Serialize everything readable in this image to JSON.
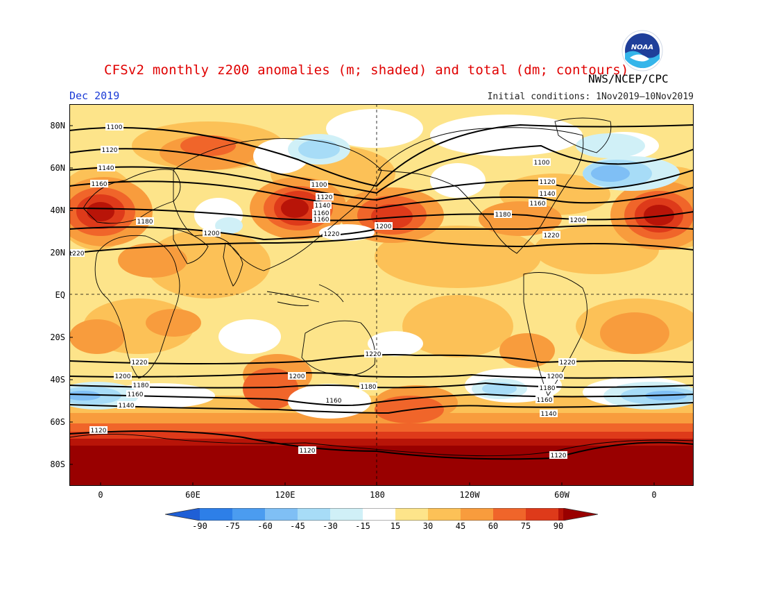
{
  "header": {
    "title": "CFSv2 monthly z200 anomalies (m; shaded) and total (dm; contours)",
    "agency": "NWS/NCEP/CPC",
    "period": "Dec 2019",
    "initial_conditions": "Initial conditions: 1Nov2019–10Nov2019",
    "logo_text": "NOAA"
  },
  "axes": {
    "lat_labels": [
      "80N",
      "60N",
      "40N",
      "20N",
      "EQ",
      "20S",
      "40S",
      "60S",
      "80S"
    ],
    "lon_labels": [
      "0",
      "60E",
      "120E",
      "180",
      "120W",
      "60W",
      "0"
    ]
  },
  "colorbar": {
    "ticks": [
      "-90",
      "-75",
      "-60",
      "-45",
      "-30",
      "-15",
      "15",
      "30",
      "45",
      "60",
      "75",
      "90"
    ],
    "colors": [
      "#1f5fd6",
      "#2d7fe8",
      "#4b9cf0",
      "#7fbff5",
      "#a7dcf7",
      "#d0f0f7",
      "#ffffff",
      "#fde48a",
      "#fcc157",
      "#f89c3d",
      "#f0652a",
      "#de3a1a",
      "#b81408",
      "#990000"
    ]
  },
  "contour_labels": {
    "nh": [
      "1100",
      "1120",
      "1140",
      "1160",
      "1180",
      "1200",
      "1220"
    ],
    "sh": [
      "1220",
      "1200",
      "1180",
      "1160",
      "1140",
      "1120"
    ]
  },
  "colors": {
    "title": "#e00000",
    "period": "#1a3ad6",
    "contour": "#000000"
  }
}
